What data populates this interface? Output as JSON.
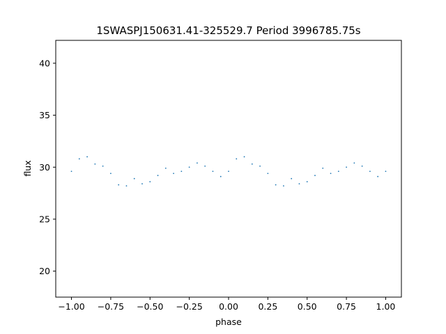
{
  "chart_data": {
    "type": "scatter",
    "title": "1SWASPJ150631.41-325529.7 Period 3996785.75s",
    "xlabel": "phase",
    "ylabel": "flux",
    "xlim": [
      -1.1,
      1.1
    ],
    "ylim": [
      17.5,
      42.2
    ],
    "x_ticks": [
      -1.0,
      -0.75,
      -0.5,
      -0.25,
      0.0,
      0.25,
      0.5,
      0.75,
      1.0
    ],
    "x_tick_labels": [
      "−1.00",
      "−0.75",
      "−0.50",
      "−0.25",
      "0.00",
      "0.25",
      "0.50",
      "0.75",
      "1.00"
    ],
    "y_ticks": [
      20,
      25,
      30,
      35,
      40
    ],
    "y_tick_labels": [
      "20",
      "25",
      "30",
      "35",
      "40"
    ],
    "grid": false,
    "legend": "none",
    "marker_color": "#1f77b4",
    "series": [
      {
        "x": [
          -1.0,
          -0.95,
          -0.9,
          -0.85,
          -0.8,
          -0.75,
          -0.7,
          -0.65,
          -0.6,
          -0.55,
          -0.5,
          -0.45,
          -0.4,
          -0.35,
          -0.3,
          -0.25,
          -0.2,
          -0.15,
          -0.1,
          -0.05,
          0.0,
          0.05,
          0.1,
          0.15,
          0.2,
          0.25,
          0.3,
          0.35,
          0.4,
          0.45,
          0.5,
          0.55,
          0.6,
          0.65,
          0.7,
          0.75,
          0.8,
          0.85,
          0.9,
          0.95,
          1.0
        ],
        "y": [
          29.6,
          30.8,
          31.0,
          30.3,
          30.1,
          29.4,
          28.3,
          28.2,
          28.9,
          28.4,
          28.6,
          29.2,
          29.9,
          29.4,
          29.6,
          30.0,
          30.4,
          30.1,
          29.6,
          29.1,
          29.6,
          30.8,
          31.0,
          30.3,
          30.1,
          29.4,
          28.3,
          28.2,
          28.9,
          28.4,
          28.6,
          29.2,
          29.9,
          29.4,
          29.6,
          30.0,
          30.4,
          30.1,
          29.6,
          29.1,
          29.6
        ]
      }
    ]
  }
}
